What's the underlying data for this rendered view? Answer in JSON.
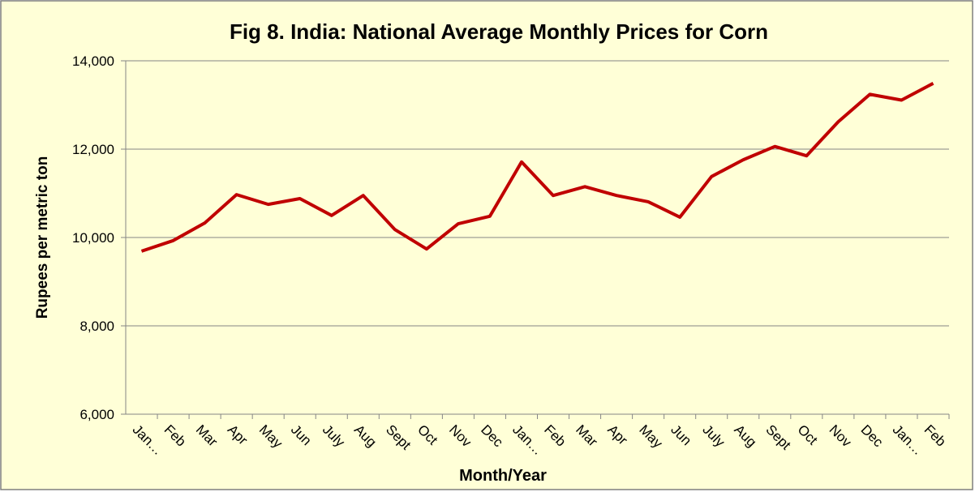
{
  "chart_data": {
    "type": "line",
    "title": "Fig 8. India: National Average Monthly Prices for Corn",
    "x_label": "Month/Year",
    "y_label": "Rupees per metric ton",
    "categories": [
      "Jan…",
      "Feb",
      "Mar",
      "Apr",
      "May",
      "Jun",
      "July",
      "Aug",
      "Sept",
      "Oct",
      "Nov",
      "Dec",
      "Jan…",
      "Feb",
      "Mar",
      "Apr",
      "May",
      "Jun",
      "July",
      "Aug",
      "Sept",
      "Oct",
      "Nov",
      "Dec",
      "Jan…",
      "Feb"
    ],
    "values": [
      9690,
      9930,
      10330,
      10970,
      10750,
      10880,
      10500,
      10950,
      10180,
      9740,
      10310,
      10480,
      11710,
      10950,
      11150,
      10950,
      10810,
      10460,
      11380,
      11760,
      12060,
      11850,
      12620,
      13240,
      13110,
      13490
    ],
    "color": "#c00000",
    "ylim": [
      6000,
      14000
    ],
    "yticks": [
      {
        "value": 6000,
        "label": "6,000"
      },
      {
        "value": 8000,
        "label": "8,000"
      },
      {
        "value": 10000,
        "label": "10,000"
      },
      {
        "value": 12000,
        "label": "12,000"
      },
      {
        "value": 14000,
        "label": "14,000"
      }
    ],
    "grid": true
  }
}
